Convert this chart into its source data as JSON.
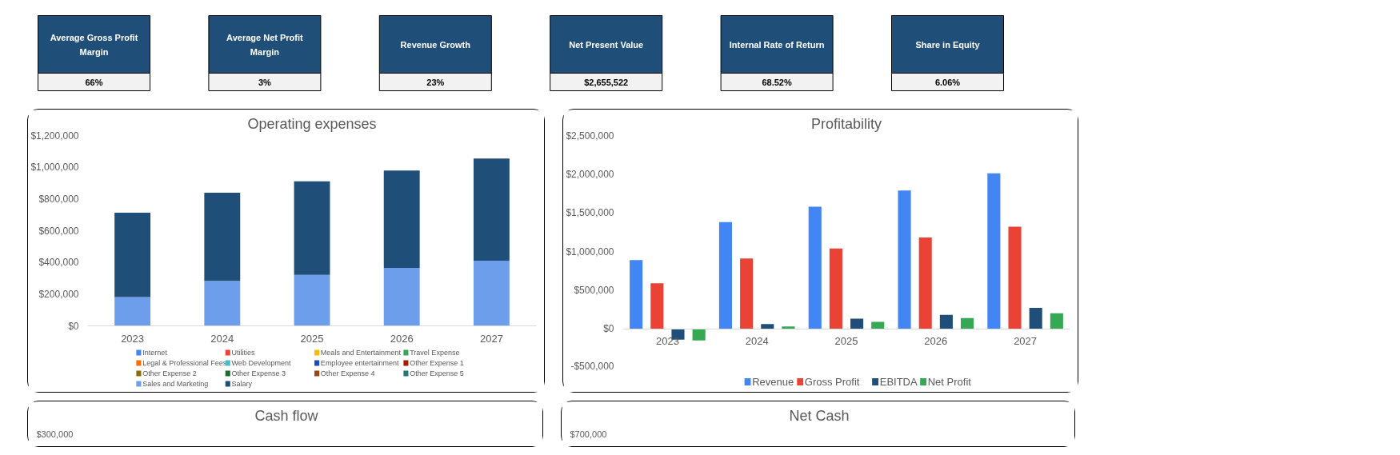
{
  "chart_data": [
    {
      "type": "other",
      "categories": [
        "Average Gross Profit Margin",
        "Average Net Profit Margin",
        "Revenue Growth",
        "Net Present Value",
        "Internal Rate of Return",
        "Share in Equity"
      ],
      "value_labels": [
        "66%",
        "3%",
        "23%",
        "$2,655,522",
        "68.52%",
        "6.06%"
      ],
      "color": "#1f4e79"
    },
    {
      "type": "bar",
      "title": "Operating expenses",
      "stacked": true,
      "categories": [
        "2023",
        "2024",
        "2025",
        "2026",
        "2027"
      ],
      "series": [
        {
          "name": "Internet",
          "color": "#4285f4",
          "values": [
            null,
            null,
            null,
            null,
            null
          ]
        },
        {
          "name": "Utilities",
          "color": "#ea4335",
          "values": [
            null,
            null,
            null,
            null,
            null
          ]
        },
        {
          "name": "Meals and Entertainment",
          "color": "#fbbc04",
          "values": [
            null,
            null,
            null,
            null,
            null
          ]
        },
        {
          "name": "Travel Expense",
          "color": "#34a853",
          "values": [
            null,
            null,
            null,
            null,
            null
          ]
        },
        {
          "name": "Legal & Professional Fees",
          "color": "#ff6d01",
          "values": [
            null,
            null,
            null,
            null,
            null
          ]
        },
        {
          "name": "Web Development",
          "color": "#46bdc6",
          "values": [
            null,
            null,
            null,
            null,
            null
          ]
        },
        {
          "name": "Employee entertainment",
          "color": "#1c4bc0",
          "values": [
            null,
            null,
            null,
            null,
            null
          ]
        },
        {
          "name": "Other Expense 1",
          "color": "#a61c00",
          "values": [
            null,
            null,
            null,
            null,
            null
          ]
        },
        {
          "name": "Other Expense 2",
          "color": "#8a6d0b",
          "values": [
            null,
            null,
            null,
            null,
            null
          ]
        },
        {
          "name": "Other Expense 3",
          "color": "#1e6b30",
          "values": [
            null,
            null,
            null,
            null,
            null
          ]
        },
        {
          "name": "Other Expense 4",
          "color": "#a0450f",
          "values": [
            null,
            null,
            null,
            null,
            null
          ]
        },
        {
          "name": "Other Expense 5",
          "color": "#23797a",
          "values": [
            null,
            null,
            null,
            null,
            null
          ]
        },
        {
          "name": "Sales and Marketing",
          "color": "#6d9eeb",
          "values": [
            182000,
            284000,
            321000,
            366000,
            411000
          ]
        },
        {
          "name": "Salary",
          "color": "#1f4e79",
          "values": [
            531000,
            555000,
            590000,
            613000,
            644000
          ]
        }
      ],
      "ylim": [
        0,
        1200000
      ],
      "yticks": [
        {
          "value": 0,
          "label": "$0"
        },
        {
          "value": 200000,
          "label": "$200,000"
        },
        {
          "value": 400000,
          "label": "$400,000"
        },
        {
          "value": 600000,
          "label": "$600,000"
        },
        {
          "value": 800000,
          "label": "$800,000"
        },
        {
          "value": 1000000,
          "label": "$1,000,000"
        },
        {
          "value": 1200000,
          "label": "$1,200,000"
        }
      ],
      "grid": false,
      "legend": "bottom"
    },
    {
      "type": "bar",
      "title": "Profitability",
      "categories": [
        "2023",
        "2024",
        "2025",
        "2026",
        "2027"
      ],
      "series": [
        {
          "name": "Revenue",
          "color": "#4285f4",
          "values": [
            890000,
            1380000,
            1580000,
            1790000,
            2010000
          ]
        },
        {
          "name": "Gross Profit",
          "color": "#ea4335",
          "values": [
            590000,
            910000,
            1040000,
            1180000,
            1320000
          ]
        },
        {
          "name": "EBITDA",
          "color": "#1f4e79",
          "values": [
            -140000,
            60000,
            130000,
            180000,
            270000
          ]
        },
        {
          "name": "Net Profit",
          "color": "#34a853",
          "values": [
            -150000,
            30000,
            90000,
            140000,
            200000
          ]
        }
      ],
      "ylim": [
        -500000,
        2500000
      ],
      "yticks": [
        {
          "value": -500000,
          "label": "-$500,000"
        },
        {
          "value": 0,
          "label": "$0"
        },
        {
          "value": 500000,
          "label": "$500,000"
        },
        {
          "value": 1000000,
          "label": "$1,000,000"
        },
        {
          "value": 1500000,
          "label": "$1,500,000"
        },
        {
          "value": 2000000,
          "label": "$2,000,000"
        },
        {
          "value": 2500000,
          "label": "$2,500,000"
        }
      ],
      "grid": false,
      "legend": "bottom"
    },
    {
      "type": "other",
      "title": "Cash flow",
      "annotations": [
        "$300,000"
      ]
    },
    {
      "type": "other",
      "title": "Net Cash",
      "annotations": [
        "$700,000"
      ]
    }
  ]
}
